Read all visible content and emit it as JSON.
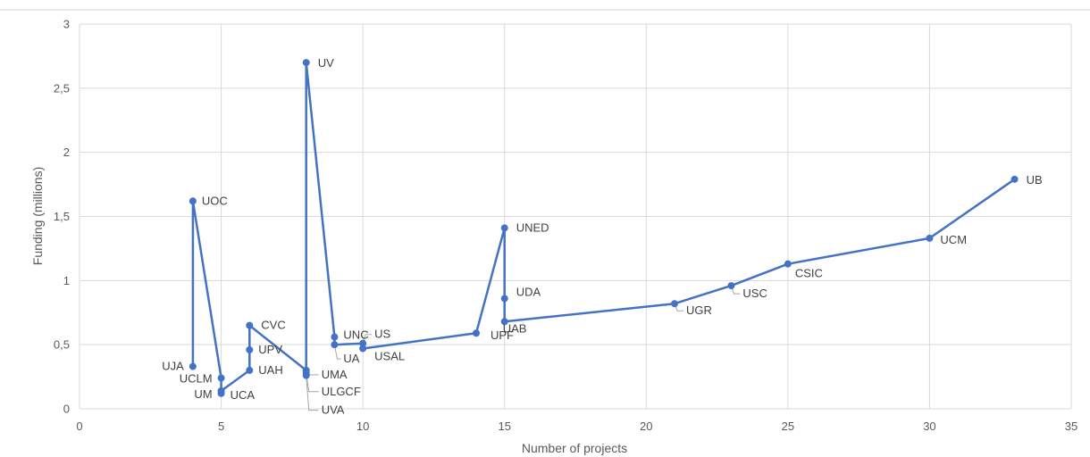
{
  "chart_data": {
    "type": "line",
    "title": "",
    "xlabel": "Number of projects",
    "ylabel": "Funding (millions)",
    "xlim": [
      0,
      35
    ],
    "ylim": [
      0,
      3
    ],
    "x_ticks": [
      0,
      5,
      10,
      15,
      20,
      25,
      30,
      35
    ],
    "x_tick_labels": [
      "0",
      "5",
      "10",
      "15",
      "20",
      "25",
      "30",
      "35"
    ],
    "y_ticks": [
      0,
      0.5,
      1,
      1.5,
      2,
      2.5,
      3
    ],
    "y_tick_labels": [
      "0",
      "0,5",
      "1",
      "1,5",
      "2",
      "2,5",
      "3"
    ],
    "grid": true,
    "legend": "none",
    "line_color": "#4472c4",
    "points": [
      {
        "label": "UJA",
        "x": 4,
        "y": 0.33
      },
      {
        "label": "UOC",
        "x": 4,
        "y": 1.62
      },
      {
        "label": "UCLM",
        "x": 5,
        "y": 0.24
      },
      {
        "label": "UM",
        "x": 5,
        "y": 0.12
      },
      {
        "label": "UCA",
        "x": 5,
        "y": 0.14
      },
      {
        "label": "UAH",
        "x": 6,
        "y": 0.3
      },
      {
        "label": "UPV",
        "x": 6,
        "y": 0.46
      },
      {
        "label": "CVC",
        "x": 6,
        "y": 0.65
      },
      {
        "label": "UMA",
        "x": 8,
        "y": 0.3
      },
      {
        "label": "ULGCF",
        "x": 8,
        "y": 0.28
      },
      {
        "label": "UVA",
        "x": 8,
        "y": 0.26
      },
      {
        "label": "UV",
        "x": 8,
        "y": 2.7
      },
      {
        "label": "UNC",
        "x": 9,
        "y": 0.56
      },
      {
        "label": "UA",
        "x": 9,
        "y": 0.5
      },
      {
        "label": "US",
        "x": 10,
        "y": 0.51
      },
      {
        "label": "USAL",
        "x": 10,
        "y": 0.47
      },
      {
        "label": "UPF",
        "x": 14,
        "y": 0.59
      },
      {
        "label": "UNED",
        "x": 15,
        "y": 1.41
      },
      {
        "label": "UDA",
        "x": 15,
        "y": 0.86
      },
      {
        "label": "UAB",
        "x": 15,
        "y": 0.68
      },
      {
        "label": "UGR",
        "x": 21,
        "y": 0.82
      },
      {
        "label": "USC",
        "x": 23,
        "y": 0.96
      },
      {
        "label": "CSIC",
        "x": 25,
        "y": 1.13
      },
      {
        "label": "UCM",
        "x": 30,
        "y": 1.33
      },
      {
        "label": "UB",
        "x": 33,
        "y": 1.79
      }
    ]
  }
}
